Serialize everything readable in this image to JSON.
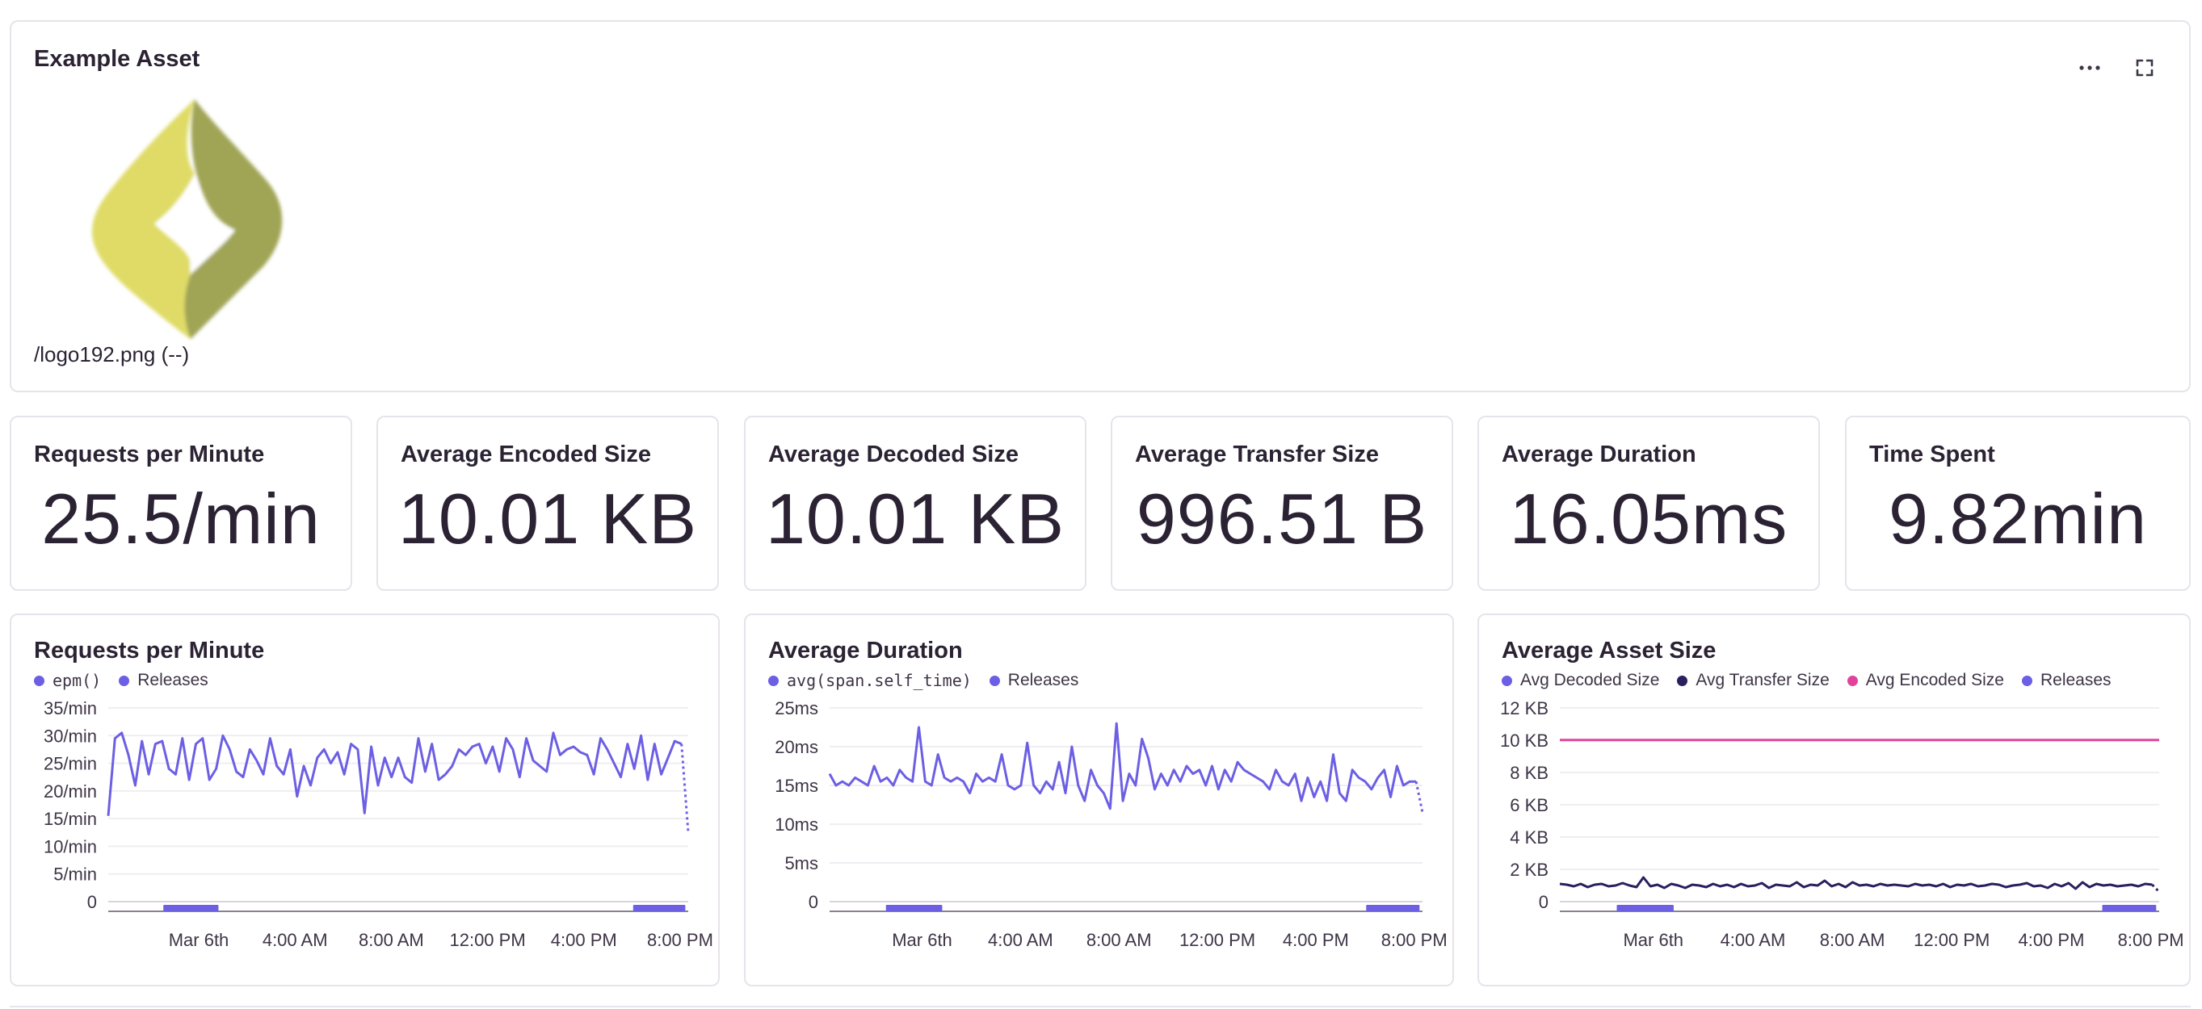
{
  "asset": {
    "title": "Example Asset",
    "caption": "/logo192.png (--)",
    "menu_icon": "ellipsis-icon",
    "expand_icon": "expand-icon",
    "colors": {
      "logo_light": "#dfdb66",
      "logo_dark": "#a0a455"
    }
  },
  "stats": [
    {
      "label": "Requests per Minute",
      "value": "25.5/min"
    },
    {
      "label": "Average Encoded Size",
      "value": "10.01 KB"
    },
    {
      "label": "Average Decoded Size",
      "value": "10.01 KB"
    },
    {
      "label": "Average Transfer Size",
      "value": "996.51 B"
    },
    {
      "label": "Average Duration",
      "value": "16.05ms"
    },
    {
      "label": "Time Spent",
      "value": "9.82min"
    }
  ],
  "chart_data": [
    {
      "type": "line",
      "title": "Requests per Minute",
      "x_ticks": [
        "Mar 6th",
        "4:00 AM",
        "8:00 AM",
        "12:00 PM",
        "4:00 PM",
        "8:00 PM"
      ],
      "y_ticks": [
        "35/min",
        "30/min",
        "25/min",
        "20/min",
        "15/min",
        "10/min",
        "5/min",
        "0"
      ],
      "ylim": [
        0,
        35
      ],
      "series": [
        {
          "name": "epm()",
          "color": "#6c5fe4",
          "values": [
            15.5,
            29.5,
            30.5,
            26.5,
            21,
            29,
            23,
            28.5,
            29,
            24,
            23,
            29.5,
            22,
            28.5,
            29.5,
            22,
            24,
            30,
            27.5,
            23.5,
            22.5,
            27.5,
            25.5,
            23,
            29.5,
            24.5,
            23,
            27.5,
            19,
            24.5,
            21,
            26,
            27.5,
            25,
            27,
            23,
            28.5,
            27.5,
            16,
            28,
            21,
            26,
            22.5,
            26,
            22.5,
            21.5,
            29.5,
            23.5,
            28.5,
            22,
            23,
            24.5,
            27.5,
            26.5,
            28,
            28.5,
            25,
            28,
            23.5,
            29.5,
            27.5,
            22.5,
            29.5,
            25.5,
            24.5,
            23.5,
            30.5,
            26.5,
            27.5,
            28,
            27,
            26.5,
            23,
            29.5,
            27.5,
            25,
            22.5,
            28.5,
            24,
            30,
            22,
            28.5,
            23,
            26,
            29,
            28.5,
            12.5
          ],
          "last_points_dotted": 1
        },
        {
          "name": "Releases",
          "color": "#6c5fe4"
        }
      ],
      "releases_bands": [
        [
          0.095,
          0.19
        ],
        [
          0.905,
          0.995
        ]
      ]
    },
    {
      "type": "line",
      "title": "Average Duration",
      "x_ticks": [
        "Mar 6th",
        "4:00 AM",
        "8:00 AM",
        "12:00 PM",
        "4:00 PM",
        "8:00 PM"
      ],
      "y_ticks": [
        "25ms",
        "20ms",
        "15ms",
        "10ms",
        "5ms",
        "0"
      ],
      "ylim": [
        0,
        25
      ],
      "series": [
        {
          "name": "avg(span.self_time)",
          "color": "#6c5fe4",
          "values": [
            16.5,
            15,
            15.5,
            15,
            16,
            15.5,
            15,
            17.5,
            15.5,
            16,
            15,
            17,
            16,
            15.5,
            22.5,
            15.5,
            15,
            19,
            16,
            15.5,
            16,
            15.5,
            14,
            16.5,
            15.5,
            16,
            15.5,
            19,
            15,
            14.5,
            15,
            20.5,
            15,
            14,
            15.5,
            14.5,
            18,
            14,
            20,
            15,
            13,
            17,
            15,
            14,
            12,
            23,
            13,
            16.5,
            15,
            21,
            18.5,
            14.5,
            16.5,
            15,
            17,
            15.5,
            17.5,
            16.5,
            17,
            15,
            17.5,
            14.5,
            17,
            15.5,
            18,
            17,
            16.5,
            16,
            15.5,
            14.5,
            17,
            15.5,
            15,
            16.5,
            13,
            16,
            13.5,
            15.5,
            13,
            19,
            14,
            13,
            17,
            16,
            15.5,
            14.5,
            16,
            17,
            13.5,
            17.5,
            15,
            15.5,
            15.5,
            11.5
          ],
          "last_points_dotted": 1
        },
        {
          "name": "Releases",
          "color": "#6c5fe4"
        }
      ],
      "releases_bands": [
        [
          0.095,
          0.19
        ],
        [
          0.905,
          0.995
        ]
      ]
    },
    {
      "type": "line",
      "title": "Average Asset Size",
      "x_ticks": [
        "Mar 6th",
        "4:00 AM",
        "8:00 AM",
        "12:00 PM",
        "4:00 PM",
        "8:00 PM"
      ],
      "y_ticks": [
        "12 KB",
        "10 KB",
        "8 KB",
        "6 KB",
        "4 KB",
        "2 KB",
        "0"
      ],
      "ylim": [
        0,
        12
      ],
      "series": [
        {
          "name": "Avg Decoded Size",
          "color": "#6c5fe4"
        },
        {
          "name": "Avg Transfer Size",
          "color": "#2b1f5f",
          "values": [
            1.1,
            1.05,
            0.95,
            1.1,
            0.9,
            1.05,
            1.1,
            0.95,
            1.0,
            1.15,
            1.0,
            0.9,
            1.5,
            0.95,
            1.05,
            0.85,
            1.1,
            1.0,
            0.85,
            1.05,
            1.0,
            0.9,
            1.1,
            0.95,
            1.05,
            0.9,
            1.1,
            0.95,
            1.0,
            1.15,
            0.85,
            1.05,
            1.0,
            0.95,
            1.2,
            0.9,
            1.05,
            1.0,
            1.3,
            0.95,
            1.1,
            0.9,
            1.2,
            1.0,
            1.05,
            0.95,
            1.1,
            1.0,
            1.05,
            1.0,
            0.95,
            1.1,
            1.0,
            1.05,
            0.95,
            1.1,
            0.9,
            1.05,
            1.0,
            1.1,
            0.95,
            1.0,
            1.1,
            1.05,
            0.9,
            1.0,
            1.05,
            1.15,
            0.95,
            1.0,
            0.85,
            1.1,
            0.95,
            1.15,
            0.8,
            1.2,
            0.9,
            1.1,
            1.0,
            1.05,
            0.95,
            1.0,
            1.05,
            0.95,
            1.1,
            1.05,
            0.6
          ],
          "last_points_dotted": 1
        },
        {
          "name": "Avg Encoded Size",
          "color": "#e0449a",
          "values": [
            10.01,
            10.01
          ]
        },
        {
          "name": "Releases",
          "color": "#6c5fe4"
        }
      ],
      "releases_bands": [
        [
          0.095,
          0.19
        ],
        [
          0.905,
          0.995
        ]
      ]
    }
  ]
}
